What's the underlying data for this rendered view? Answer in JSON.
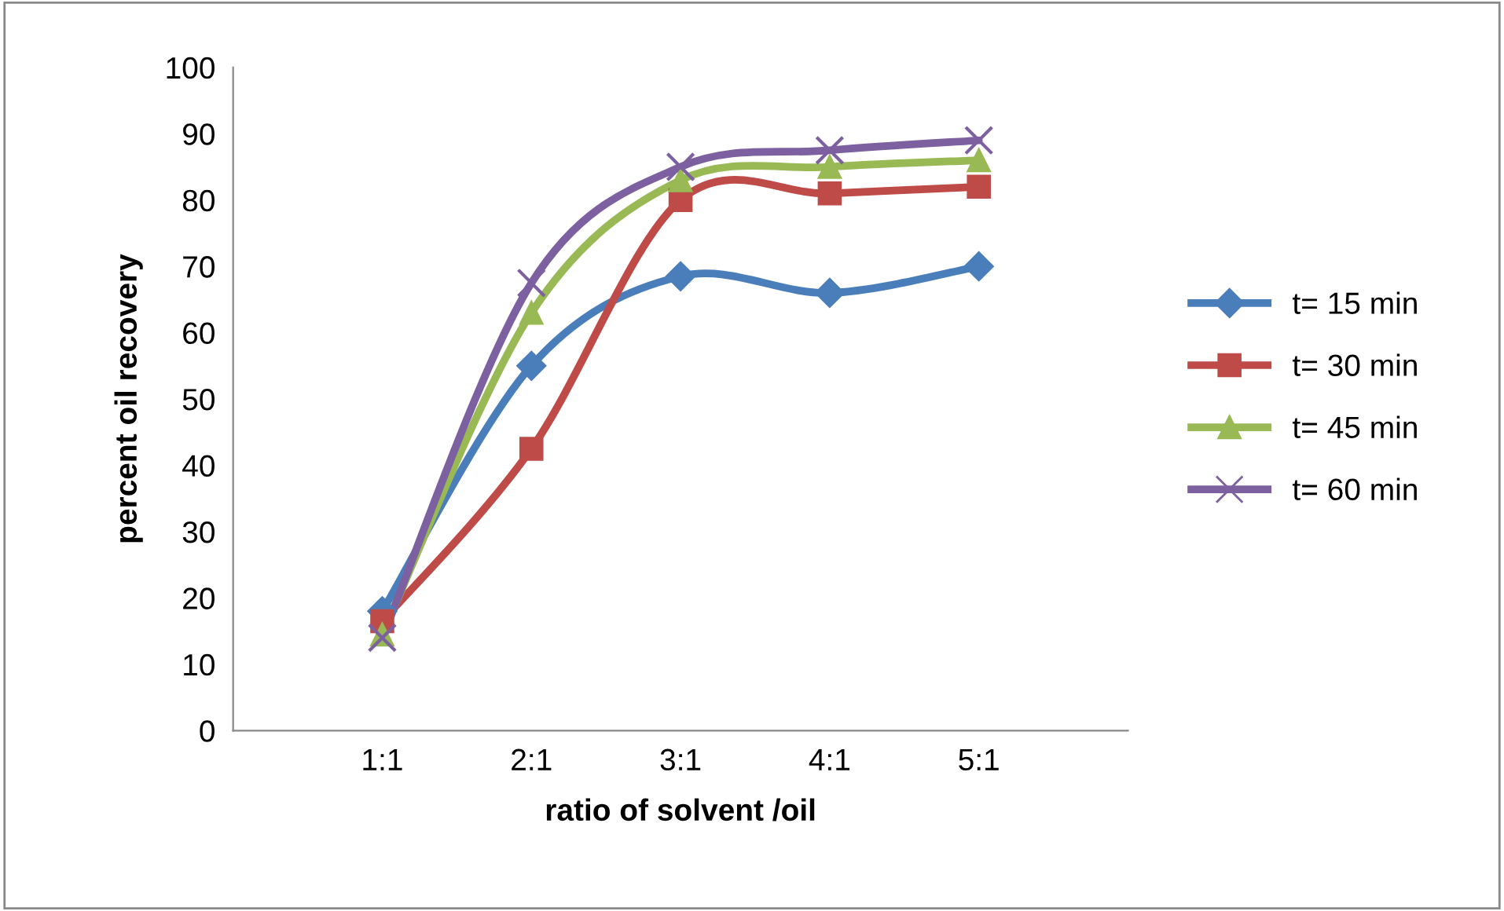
{
  "chart_data": {
    "type": "line",
    "xlabel": "ratio of solvent /oil",
    "ylabel": "percent oil recovery",
    "categories": [
      "1:1",
      "2:1",
      "3:1",
      "4:1",
      "5:1"
    ],
    "series": [
      {
        "name": "t= 15 min",
        "color": "#4a7ebb",
        "marker": "diamond",
        "values": [
          18,
          55,
          68.5,
          66,
          70
        ]
      },
      {
        "name": "t= 30 min",
        "color": "#be4b48",
        "marker": "square",
        "values": [
          16.5,
          42.5,
          80,
          81,
          82
        ]
      },
      {
        "name": "t= 45 min",
        "color": "#98b954",
        "marker": "triangle",
        "values": [
          14.5,
          63,
          83,
          85,
          86
        ]
      },
      {
        "name": "t= 60 min",
        "color": "#7d60a0",
        "marker": "cross",
        "values": [
          14,
          67.5,
          85,
          87.5,
          89
        ]
      }
    ],
    "ylim": [
      0,
      100
    ],
    "yticks": [
      0,
      10,
      20,
      30,
      40,
      50,
      60,
      70,
      80,
      90,
      100
    ],
    "grid": false,
    "legend": "right"
  }
}
